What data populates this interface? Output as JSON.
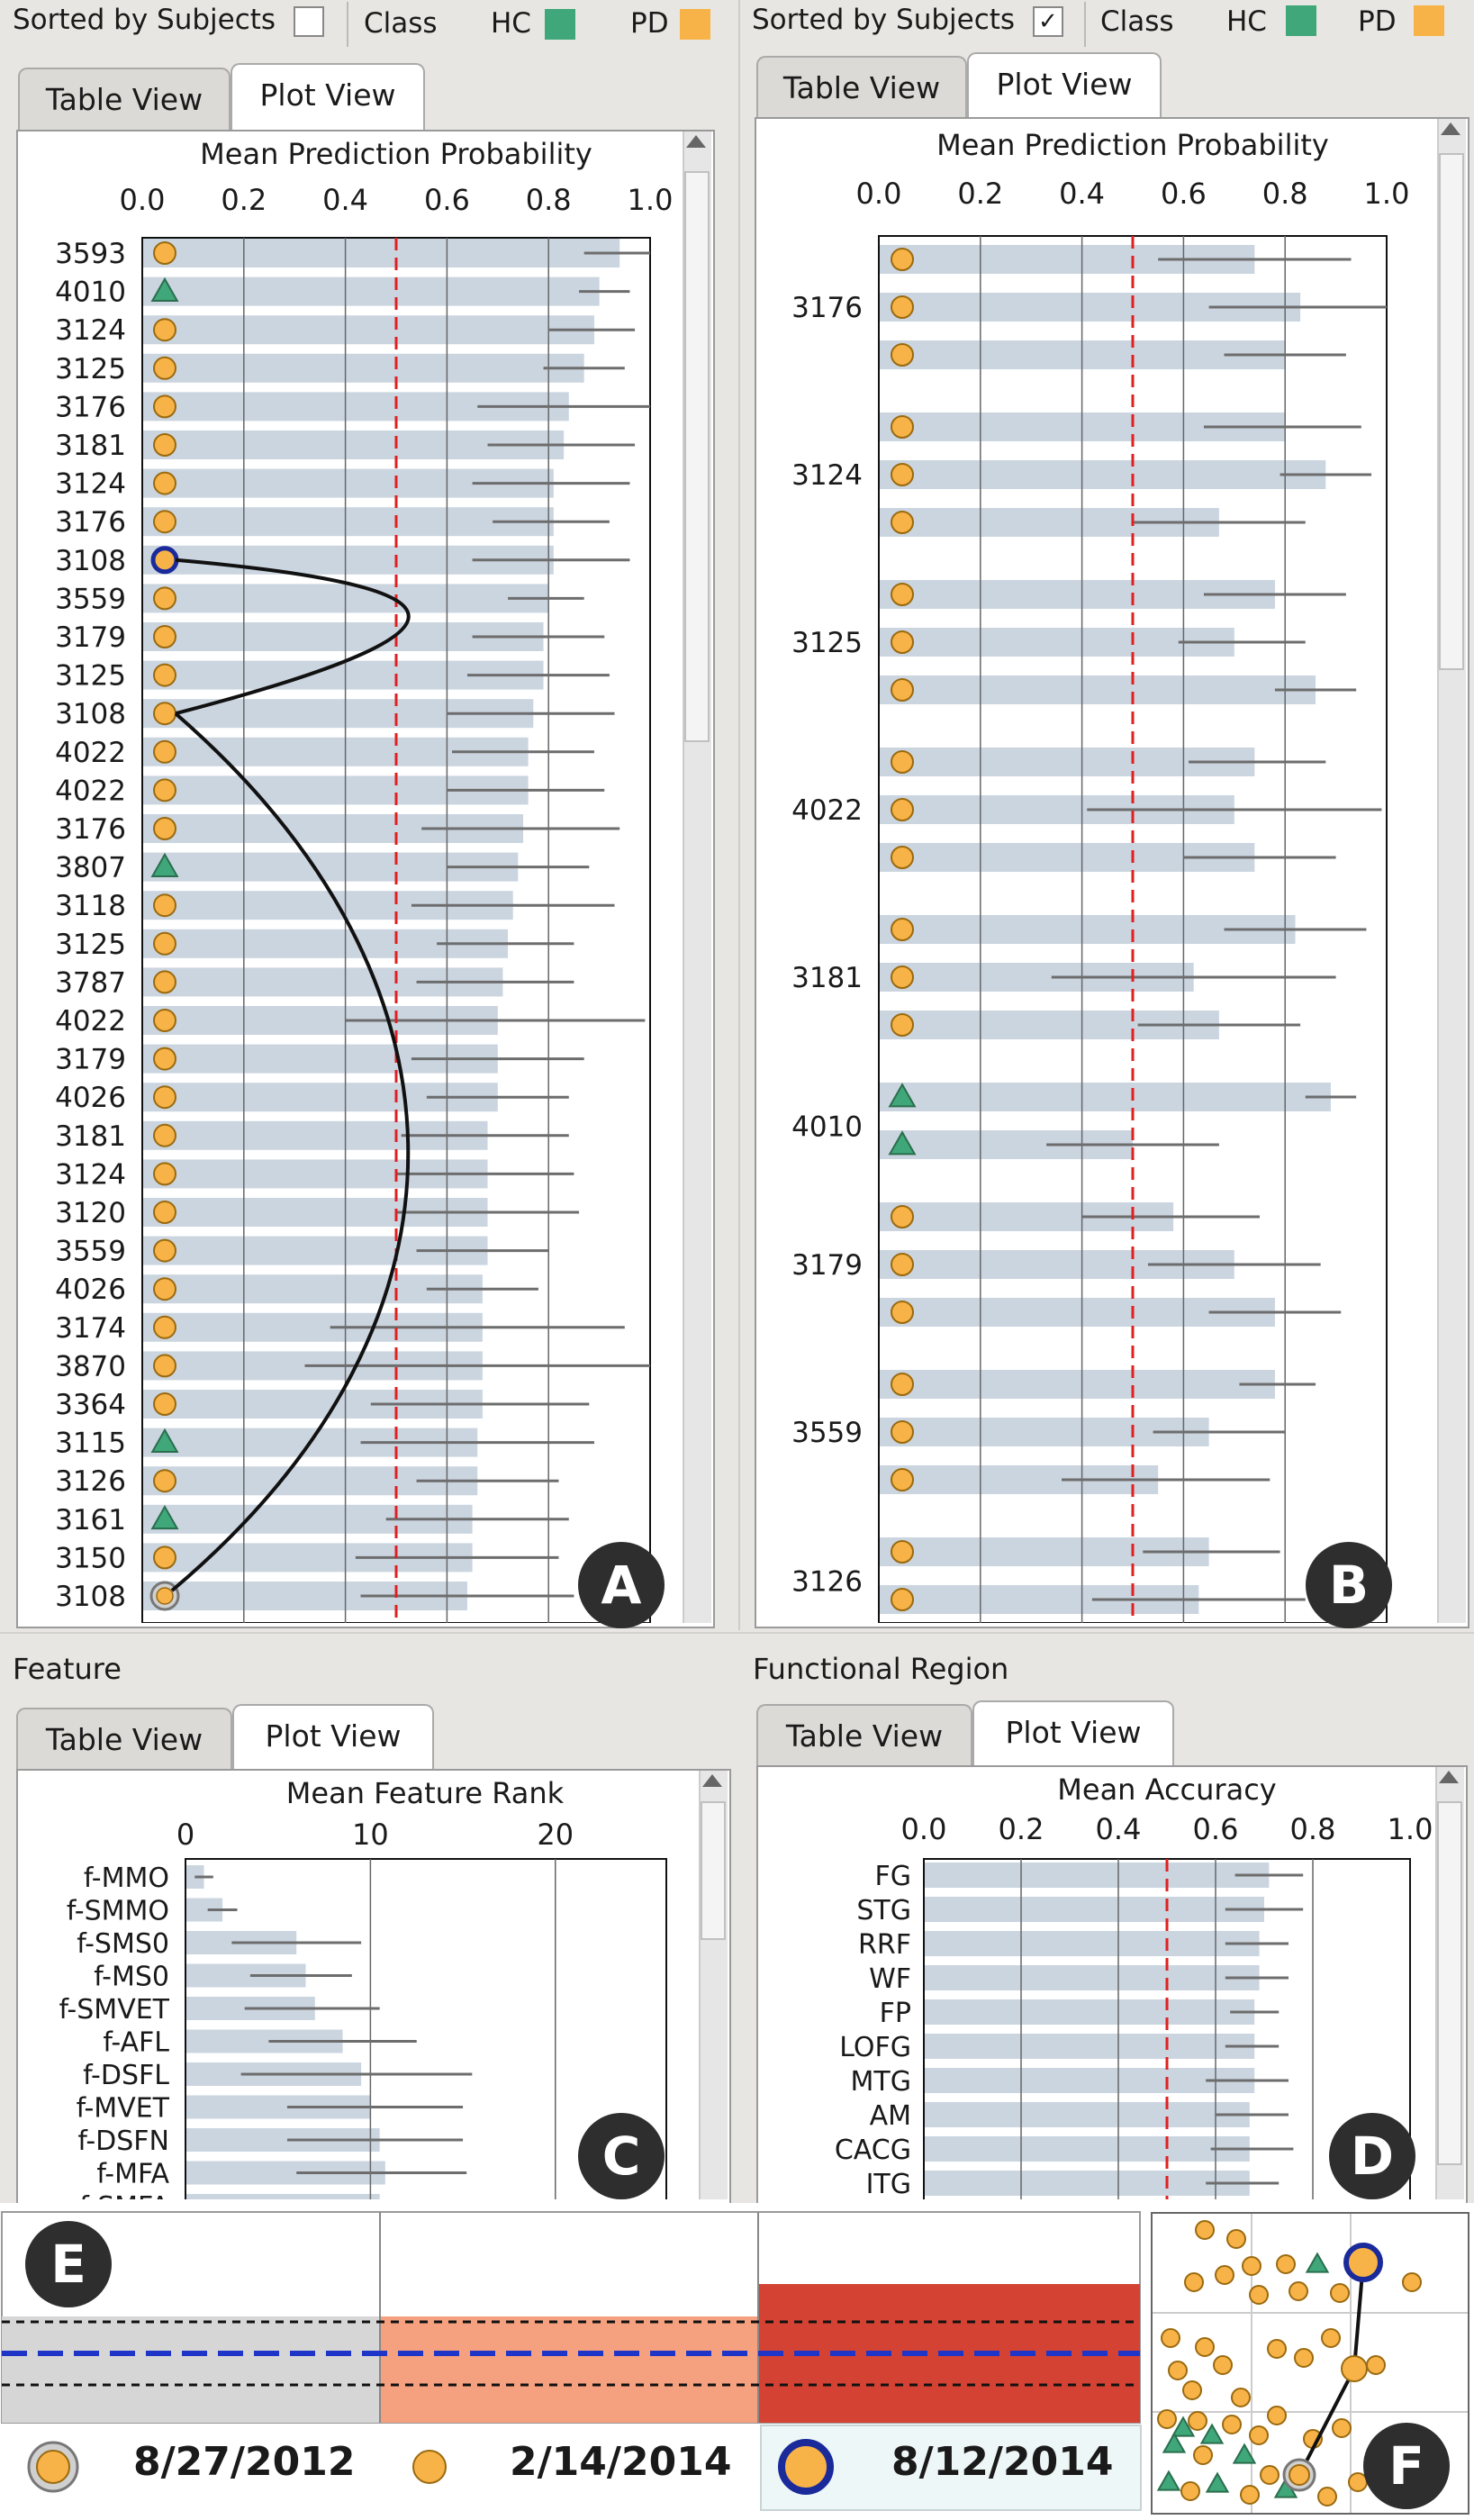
{
  "top_left": {
    "sort_label": "Sorted by Subjects",
    "sorted": false,
    "class_label": "Class",
    "hc_label": "HC",
    "pd_label": "PD",
    "tabs": [
      "Table View",
      "Plot View"
    ],
    "badge": "A"
  },
  "top_right": {
    "sort_label": "Sorted by Subjects",
    "sorted": true,
    "check_mark": "✓",
    "class_label": "Class",
    "hc_label": "HC",
    "pd_label": "PD",
    "tabs": [
      "Table View",
      "Plot View"
    ],
    "badge": "B"
  },
  "feature": {
    "title": "Feature",
    "tabs": [
      "Table View",
      "Plot View"
    ],
    "badge": "C"
  },
  "region": {
    "title": "Functional Region",
    "tabs": [
      "Table View",
      "Plot View"
    ],
    "badge": "D"
  },
  "timeline": {
    "badge": "E",
    "dates": [
      "8/27/2012",
      "2/14/2014",
      "8/12/2014"
    ]
  },
  "scatter": {
    "badge": "F"
  },
  "colors": {
    "hc": "#3fa779",
    "pd": "#f7b347",
    "bar": "#cbd5e0",
    "threshold": "#e02020",
    "highlight_ring": "#1a2a9a"
  },
  "chart_data": [
    {
      "id": "A",
      "type": "bar",
      "title": "Mean Prediction Probability",
      "xlim": [
        0,
        1
      ],
      "xticks": [
        "0.0",
        "0.2",
        "0.4",
        "0.6",
        "0.8",
        "1.0"
      ],
      "threshold": 0.5,
      "categories": [
        "3593",
        "4010",
        "3124",
        "3125",
        "3176",
        "3181",
        "3124",
        "3176",
        "3108",
        "3559",
        "3179",
        "3125",
        "3108",
        "4022",
        "4022",
        "3176",
        "3807",
        "3118",
        "3125",
        "3787",
        "4022",
        "3179",
        "4026",
        "3181",
        "3124",
        "3120",
        "3559",
        "4026",
        "3174",
        "3870",
        "3364",
        "3115",
        "3126",
        "3161",
        "3150",
        "3108"
      ],
      "classes": [
        "PD",
        "HC",
        "PD",
        "PD",
        "PD",
        "PD",
        "PD",
        "PD",
        "PD",
        "PD",
        "PD",
        "PD",
        "PD",
        "PD",
        "PD",
        "PD",
        "HC",
        "PD",
        "PD",
        "PD",
        "PD",
        "PD",
        "PD",
        "PD",
        "PD",
        "PD",
        "PD",
        "PD",
        "PD",
        "PD",
        "PD",
        "HC",
        "PD",
        "HC",
        "PD",
        "PD"
      ],
      "values": [
        0.94,
        0.9,
        0.89,
        0.87,
        0.84,
        0.83,
        0.81,
        0.81,
        0.81,
        0.8,
        0.79,
        0.79,
        0.77,
        0.76,
        0.76,
        0.75,
        0.74,
        0.73,
        0.72,
        0.71,
        0.7,
        0.7,
        0.7,
        0.68,
        0.68,
        0.68,
        0.68,
        0.67,
        0.67,
        0.67,
        0.67,
        0.66,
        0.66,
        0.65,
        0.65,
        0.64
      ],
      "err_low": [
        0.87,
        0.86,
        0.8,
        0.79,
        0.66,
        0.68,
        0.65,
        0.69,
        0.65,
        0.72,
        0.65,
        0.64,
        0.6,
        0.61,
        0.6,
        0.55,
        0.6,
        0.53,
        0.58,
        0.54,
        0.4,
        0.53,
        0.56,
        0.51,
        0.5,
        0.5,
        0.54,
        0.56,
        0.37,
        0.32,
        0.45,
        0.43,
        0.54,
        0.48,
        0.42,
        0.43
      ],
      "err_high": [
        1.0,
        0.96,
        0.97,
        0.95,
        1.0,
        0.97,
        0.96,
        0.92,
        0.96,
        0.87,
        0.91,
        0.92,
        0.93,
        0.89,
        0.91,
        0.94,
        0.88,
        0.93,
        0.85,
        0.85,
        0.99,
        0.87,
        0.84,
        0.84,
        0.85,
        0.86,
        0.8,
        0.78,
        0.95,
        1.0,
        0.88,
        0.89,
        0.82,
        0.84,
        0.82,
        0.85
      ],
      "marker_special": {
        "ring_index": 8,
        "gray_index": 35
      }
    },
    {
      "id": "B",
      "type": "bar",
      "title": "Mean Prediction Probability",
      "xlim": [
        0,
        1
      ],
      "xticks": [
        "0.0",
        "0.2",
        "0.4",
        "0.6",
        "0.8",
        "1.0"
      ],
      "threshold": 0.5,
      "group_labels": [
        "3176",
        "3124",
        "3125",
        "4022",
        "3181",
        "4010",
        "3179",
        "3559",
        "3126"
      ],
      "groups": [
        {
          "label": "3176",
          "classes": [
            "PD",
            "PD",
            "PD"
          ],
          "values": [
            0.74,
            0.83,
            0.8
          ],
          "err_low": [
            0.55,
            0.65,
            0.68
          ],
          "err_high": [
            0.93,
            1.0,
            0.92
          ]
        },
        {
          "label": "3124",
          "classes": [
            "PD",
            "PD",
            "PD"
          ],
          "values": [
            0.8,
            0.88,
            0.67
          ],
          "err_low": [
            0.64,
            0.79,
            0.5
          ],
          "err_high": [
            0.95,
            0.97,
            0.84
          ]
        },
        {
          "label": "3125",
          "classes": [
            "PD",
            "PD",
            "PD"
          ],
          "values": [
            0.78,
            0.7,
            0.86
          ],
          "err_low": [
            0.64,
            0.59,
            0.78
          ],
          "err_high": [
            0.92,
            0.84,
            0.94
          ]
        },
        {
          "label": "4022",
          "classes": [
            "PD",
            "PD",
            "PD"
          ],
          "values": [
            0.74,
            0.7,
            0.74
          ],
          "err_low": [
            0.61,
            0.41,
            0.6
          ],
          "err_high": [
            0.88,
            0.99,
            0.9
          ]
        },
        {
          "label": "3181",
          "classes": [
            "PD",
            "PD",
            "PD"
          ],
          "values": [
            0.82,
            0.62,
            0.67
          ],
          "err_low": [
            0.68,
            0.34,
            0.51
          ],
          "err_high": [
            0.96,
            0.9,
            0.83
          ]
        },
        {
          "label": "4010",
          "classes": [
            "HC",
            "HC"
          ],
          "values": [
            0.89,
            0.5
          ],
          "err_low": [
            0.84,
            0.33
          ],
          "err_high": [
            0.94,
            0.67
          ]
        },
        {
          "label": "3179",
          "classes": [
            "PD",
            "PD",
            "PD"
          ],
          "values": [
            0.58,
            0.7,
            0.78
          ],
          "err_low": [
            0.4,
            0.53,
            0.65
          ],
          "err_high": [
            0.75,
            0.87,
            0.91
          ]
        },
        {
          "label": "3559",
          "classes": [
            "PD",
            "PD",
            "PD"
          ],
          "values": [
            0.78,
            0.65,
            0.55
          ],
          "err_low": [
            0.71,
            0.54,
            0.36
          ],
          "err_high": [
            0.86,
            0.8,
            0.77
          ]
        },
        {
          "label": "3126",
          "classes": [
            "PD",
            "PD"
          ],
          "values": [
            0.65,
            0.63
          ],
          "err_low": [
            0.52,
            0.42
          ],
          "err_high": [
            0.79,
            0.84
          ]
        }
      ]
    },
    {
      "id": "C",
      "type": "bar",
      "title": "Mean Feature Rank",
      "xlim": [
        0,
        25
      ],
      "xticks": [
        "0",
        "10",
        "20"
      ],
      "categories": [
        "f-MMO",
        "f-SMMO",
        "f-SMS0",
        "f-MS0",
        "f-SMVET",
        "f-AFL",
        "f-DSFL",
        "f-MVET",
        "f-DSFN",
        "f-MFA",
        "f-SMFA"
      ],
      "values": [
        1.0,
        2.0,
        6.0,
        6.5,
        7.0,
        8.5,
        9.5,
        10.0,
        10.5,
        10.8,
        10.5
      ],
      "err_low": [
        0.5,
        1.2,
        2.5,
        3.5,
        3.2,
        4.5,
        3.0,
        5.5,
        5.5,
        6.0,
        5.5
      ],
      "err_high": [
        1.5,
        2.8,
        9.5,
        9.0,
        10.5,
        12.5,
        15.5,
        15.0,
        15.0,
        15.2,
        15.5
      ]
    },
    {
      "id": "D",
      "type": "bar",
      "title": "Mean Accuracy",
      "xlim": [
        0,
        1
      ],
      "xticks": [
        "0.0",
        "0.2",
        "0.4",
        "0.6",
        "0.8",
        "1.0"
      ],
      "threshold": 0.5,
      "categories": [
        "FG",
        "STG",
        "RRF",
        "WF",
        "FP",
        "LOFG",
        "MTG",
        "AM",
        "CACG",
        "ITG"
      ],
      "values": [
        0.71,
        0.7,
        0.69,
        0.69,
        0.68,
        0.68,
        0.68,
        0.67,
        0.67,
        0.67
      ],
      "err_low": [
        0.64,
        0.62,
        0.62,
        0.62,
        0.63,
        0.62,
        0.58,
        0.6,
        0.59,
        0.58
      ],
      "err_high": [
        0.78,
        0.78,
        0.75,
        0.75,
        0.73,
        0.73,
        0.75,
        0.75,
        0.76,
        0.73
      ]
    }
  ]
}
